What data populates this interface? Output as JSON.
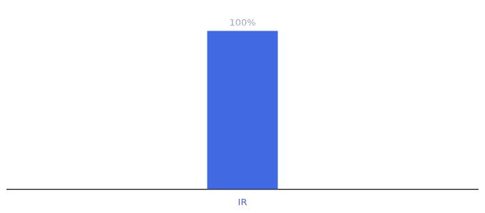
{
  "chart_data": {
    "type": "bar",
    "categories": [
      "IR"
    ],
    "values": [
      100
    ],
    "value_labels": [
      "100%"
    ],
    "color": "#4169e1",
    "ylim": [
      0,
      115
    ],
    "data_labels": true,
    "tick_labels": "x",
    "grid": false
  }
}
